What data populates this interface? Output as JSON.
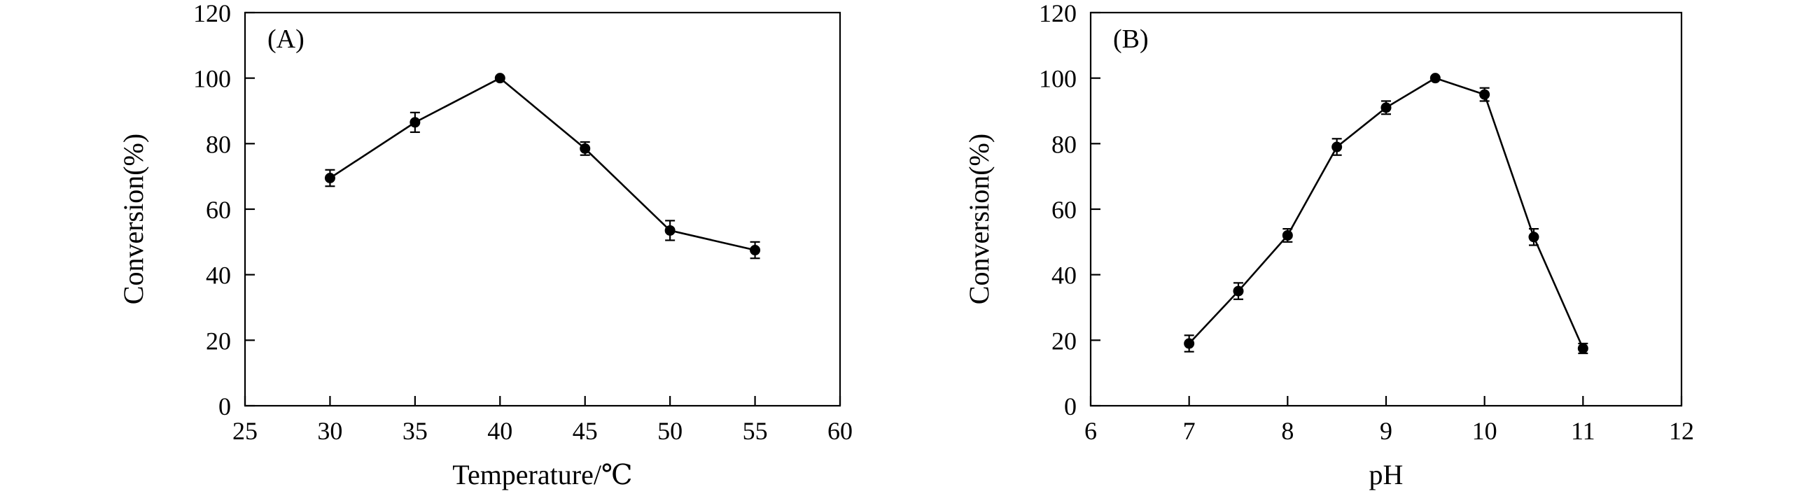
{
  "chart_data": [
    {
      "type": "line",
      "panel_label": "(A)",
      "xlabel": "Temperature/℃",
      "ylabel": "Conversion(%)",
      "xlim": [
        25,
        60
      ],
      "ylim": [
        0,
        120
      ],
      "xticks": [
        25,
        30,
        35,
        40,
        45,
        50,
        55,
        60
      ],
      "yticks": [
        0,
        20,
        40,
        60,
        80,
        100,
        120
      ],
      "grid": false,
      "series": [
        {
          "x": [
            30,
            35,
            40,
            45,
            50,
            55
          ],
          "y": [
            69.5,
            86.5,
            100,
            78.5,
            53.5,
            47.5
          ],
          "yerr": [
            2.5,
            3.0,
            0,
            2.0,
            3.0,
            2.5
          ],
          "color": "#000000",
          "marker": "circle"
        }
      ]
    },
    {
      "type": "line",
      "panel_label": "(B)",
      "xlabel": "pH",
      "ylabel": "Conversion(%)",
      "xlim": [
        6,
        12
      ],
      "ylim": [
        0,
        120
      ],
      "xticks": [
        6,
        7,
        8,
        9,
        10,
        11,
        12
      ],
      "yticks": [
        0,
        20,
        40,
        60,
        80,
        100,
        120
      ],
      "grid": false,
      "series": [
        {
          "x": [
            7,
            7.5,
            8,
            8.5,
            9,
            9.5,
            10,
            10.5,
            11
          ],
          "y": [
            19,
            35,
            52,
            79,
            91,
            100,
            95,
            51.5,
            17.5
          ],
          "yerr": [
            2.5,
            2.5,
            2.0,
            2.5,
            2.0,
            0,
            2.0,
            2.5,
            1.5
          ],
          "color": "#000000",
          "marker": "circle"
        }
      ]
    }
  ]
}
